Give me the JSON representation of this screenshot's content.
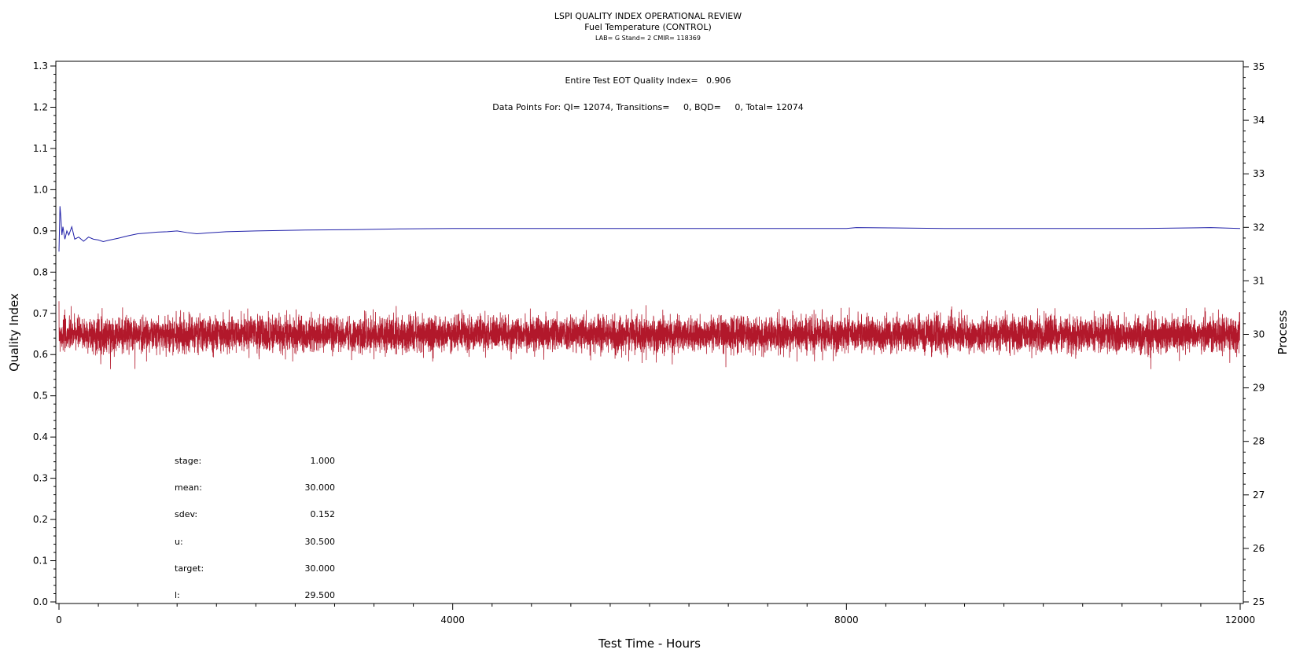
{
  "chart_data": {
    "type": "line",
    "title": "LSPI QUALITY INDEX OPERATIONAL REVIEW",
    "subtitle": "Fuel Temperature (CONTROL)",
    "subtitle2": "LAB= G Stand= 2 CMIR= 118369",
    "annotations": [
      "Entire Test EOT Quality Index=   0.906",
      "Data Points For: QI= 12074, Transitions=     0, BQD=     0, Total= 12074"
    ],
    "xlabel": "Test Time - Hours",
    "ylabel": "Quality Index",
    "y2label": "Process",
    "xlim": [
      0,
      12000
    ],
    "ylim": [
      0,
      1.3
    ],
    "y2lim": [
      25,
      35
    ],
    "x_ticks": [
      0,
      4000,
      8000,
      12000
    ],
    "x_tick_labels": [
      "0",
      "4000",
      "8000",
      "12000"
    ],
    "y_ticks": [
      0.0,
      0.1,
      0.2,
      0.3,
      0.4,
      0.5,
      0.6,
      0.7,
      0.8,
      0.9,
      1.0,
      1.1,
      1.2,
      1.3
    ],
    "y_tick_labels": [
      "0.0",
      "0.1",
      "0.2",
      "0.3",
      "0.4",
      "0.5",
      "0.6",
      "0.7",
      "0.8",
      "0.9",
      "1.0",
      "1.1",
      "1.2",
      "1.3"
    ],
    "y2_ticks": [
      25,
      26,
      27,
      28,
      29,
      30,
      31,
      32,
      33,
      34,
      35
    ],
    "y2_tick_labels": [
      "25",
      "26",
      "27",
      "28",
      "29",
      "30",
      "31",
      "32",
      "33",
      "34",
      "35"
    ],
    "grid": false,
    "series": [
      {
        "axis": "left",
        "color": "#1f1fa8",
        "x": [
          0,
          10,
          20,
          30,
          40,
          60,
          80,
          100,
          130,
          160,
          200,
          250,
          300,
          350,
          400,
          450,
          500,
          600,
          700,
          800,
          900,
          1000,
          1100,
          1200,
          1300,
          1400,
          1500,
          1700,
          2000,
          2500,
          3000,
          3500,
          4000,
          5000,
          6000,
          7000,
          8000,
          8100,
          9000,
          10000,
          11000,
          11700,
          12000
        ],
        "y": [
          0.85,
          0.96,
          0.93,
          0.89,
          0.91,
          0.88,
          0.9,
          0.89,
          0.91,
          0.88,
          0.885,
          0.875,
          0.885,
          0.88,
          0.878,
          0.874,
          0.877,
          0.882,
          0.888,
          0.893,
          0.895,
          0.897,
          0.898,
          0.9,
          0.896,
          0.893,
          0.895,
          0.898,
          0.9,
          0.902,
          0.903,
          0.905,
          0.906,
          0.906,
          0.906,
          0.906,
          0.906,
          0.908,
          0.906,
          0.906,
          0.906,
          0.908,
          0.906
        ]
      },
      {
        "axis": "right",
        "color": "#b2182b",
        "mean": 30.0,
        "sdev": 0.152,
        "points": 12074,
        "range": [
          29.35,
          30.65
        ]
      }
    ]
  },
  "stats": [
    {
      "label": "stage:",
      "value": "1.000"
    },
    {
      "label": "mean:",
      "value": "30.000"
    },
    {
      "label": "sdev:",
      "value": "0.152"
    },
    {
      "label": "u:",
      "value": "30.500"
    },
    {
      "label": "target:",
      "value": "30.000"
    },
    {
      "label": "l:",
      "value": "29.500"
    }
  ]
}
